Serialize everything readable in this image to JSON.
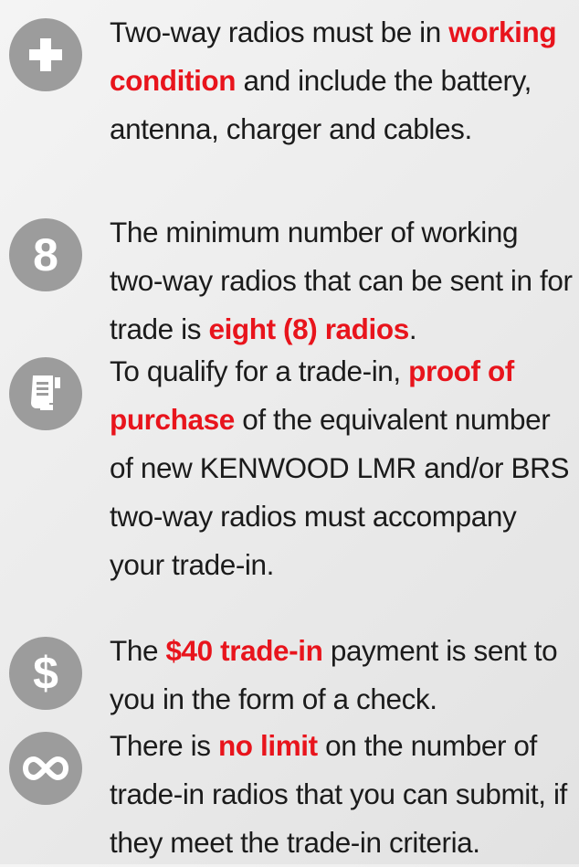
{
  "items": [
    {
      "parts": [
        "Two-way radios must be in ",
        "working condition",
        " and include the battery, antenna, charger and cables."
      ]
    },
    {
      "icon_text": "8",
      "parts": [
        "The minimum number of working two-way radios that can be sent in for trade is ",
        "eight (8) radios",
        "."
      ]
    },
    {
      "parts": [
        "To qualify for a trade-in, ",
        "proof of purchase",
        " of the equivalent number of new KENWOOD LMR and/or BRS two-way radios must accompany your trade-in."
      ]
    },
    {
      "icon_text": "$",
      "parts": [
        "The ",
        "$40 trade-in",
        " payment is sent to you in the form of a check."
      ]
    },
    {
      "parts": [
        "There is ",
        "no limit",
        " on the number of trade-in radios that you can submit, if they meet the trade-in criteria."
      ]
    }
  ]
}
